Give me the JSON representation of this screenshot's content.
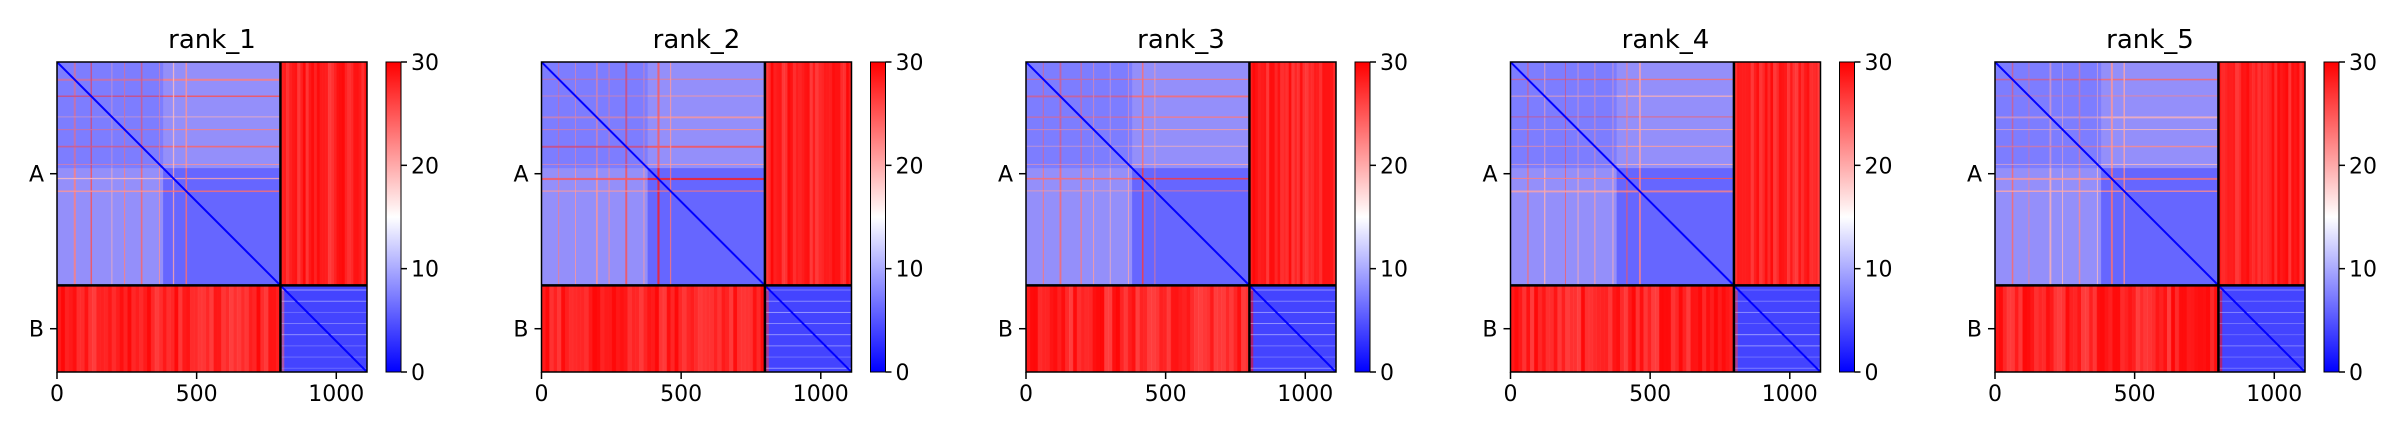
{
  "chart_data": {
    "type": "heatmap",
    "panels": [
      {
        "title": "rank_1"
      },
      {
        "title": "rank_2"
      },
      {
        "title": "rank_3"
      },
      {
        "title": "rank_4"
      },
      {
        "title": "rank_5"
      }
    ],
    "chains": [
      {
        "label": "A",
        "start": 0,
        "end": 800
      },
      {
        "label": "B",
        "start": 800,
        "end": 1110
      }
    ],
    "xlim": [
      0,
      1110
    ],
    "ylim": [
      1110,
      0
    ],
    "x_ticks": [
      {
        "value": 0,
        "label": "0"
      },
      {
        "value": 500,
        "label": "500"
      },
      {
        "value": 1000,
        "label": "1000"
      }
    ],
    "y_ticks": [
      {
        "value": 400,
        "label": "A"
      },
      {
        "value": 955,
        "label": "B"
      }
    ],
    "colorbar": {
      "min": 0,
      "max": 30,
      "ticks": [
        {
          "value": 0,
          "label": "0"
        },
        {
          "value": 10,
          "label": "10"
        },
        {
          "value": 20,
          "label": "20"
        },
        {
          "value": 30,
          "label": "30"
        }
      ],
      "colormap": [
        "#0000ff",
        "#ffffff",
        "#ff0000"
      ]
    },
    "intra_chain_value": 4,
    "inter_chain_value": 29,
    "chain_boundary_color": "#000000"
  }
}
